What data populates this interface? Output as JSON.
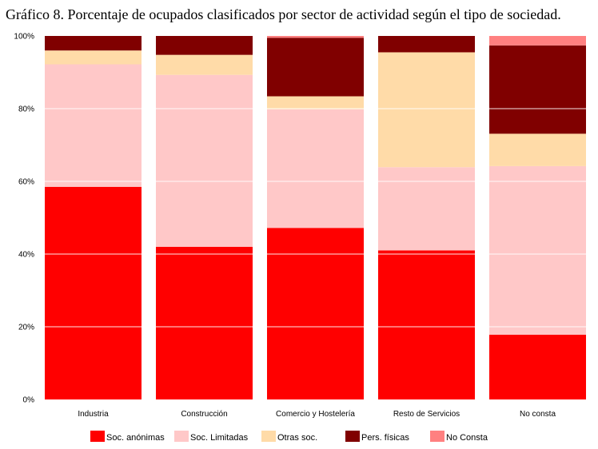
{
  "chart_data": {
    "type": "bar",
    "stacked": true,
    "percent": true,
    "title": "Gráfico 8. Porcentaje de ocupados clasificados por sector de actividad según el tipo de sociedad.",
    "categories": [
      "Industria",
      "Construcción",
      "Comercio y Hostelería",
      "Resto de Servicios",
      "No consta"
    ],
    "ylim": [
      0,
      100
    ],
    "yticks": [
      "0%",
      "20%",
      "40%",
      "60%",
      "80%",
      "100%"
    ],
    "grid": true,
    "legend_position": "bottom",
    "series": [
      {
        "name": "Soc. anónimas",
        "color": "#ff0000",
        "values": [
          58.5,
          42,
          47.2,
          41,
          17.8
        ]
      },
      {
        "name": "Soc. Limitadas",
        "color": "#ffc8c8",
        "values": [
          33.7,
          47.3,
          32.6,
          22.9,
          46.4
        ]
      },
      {
        "name": "Otras soc.",
        "color": "#ffdba8",
        "values": [
          3.8,
          5.5,
          3.6,
          31.6,
          8.9
        ]
      },
      {
        "name": "Pers. físicas",
        "color": "#800000",
        "values": [
          4,
          5.2,
          16.1,
          4.5,
          24.3
        ]
      },
      {
        "name": "No Consta",
        "color": "#ff8080",
        "values": [
          0,
          0,
          0.5,
          0,
          2.6
        ]
      }
    ]
  }
}
